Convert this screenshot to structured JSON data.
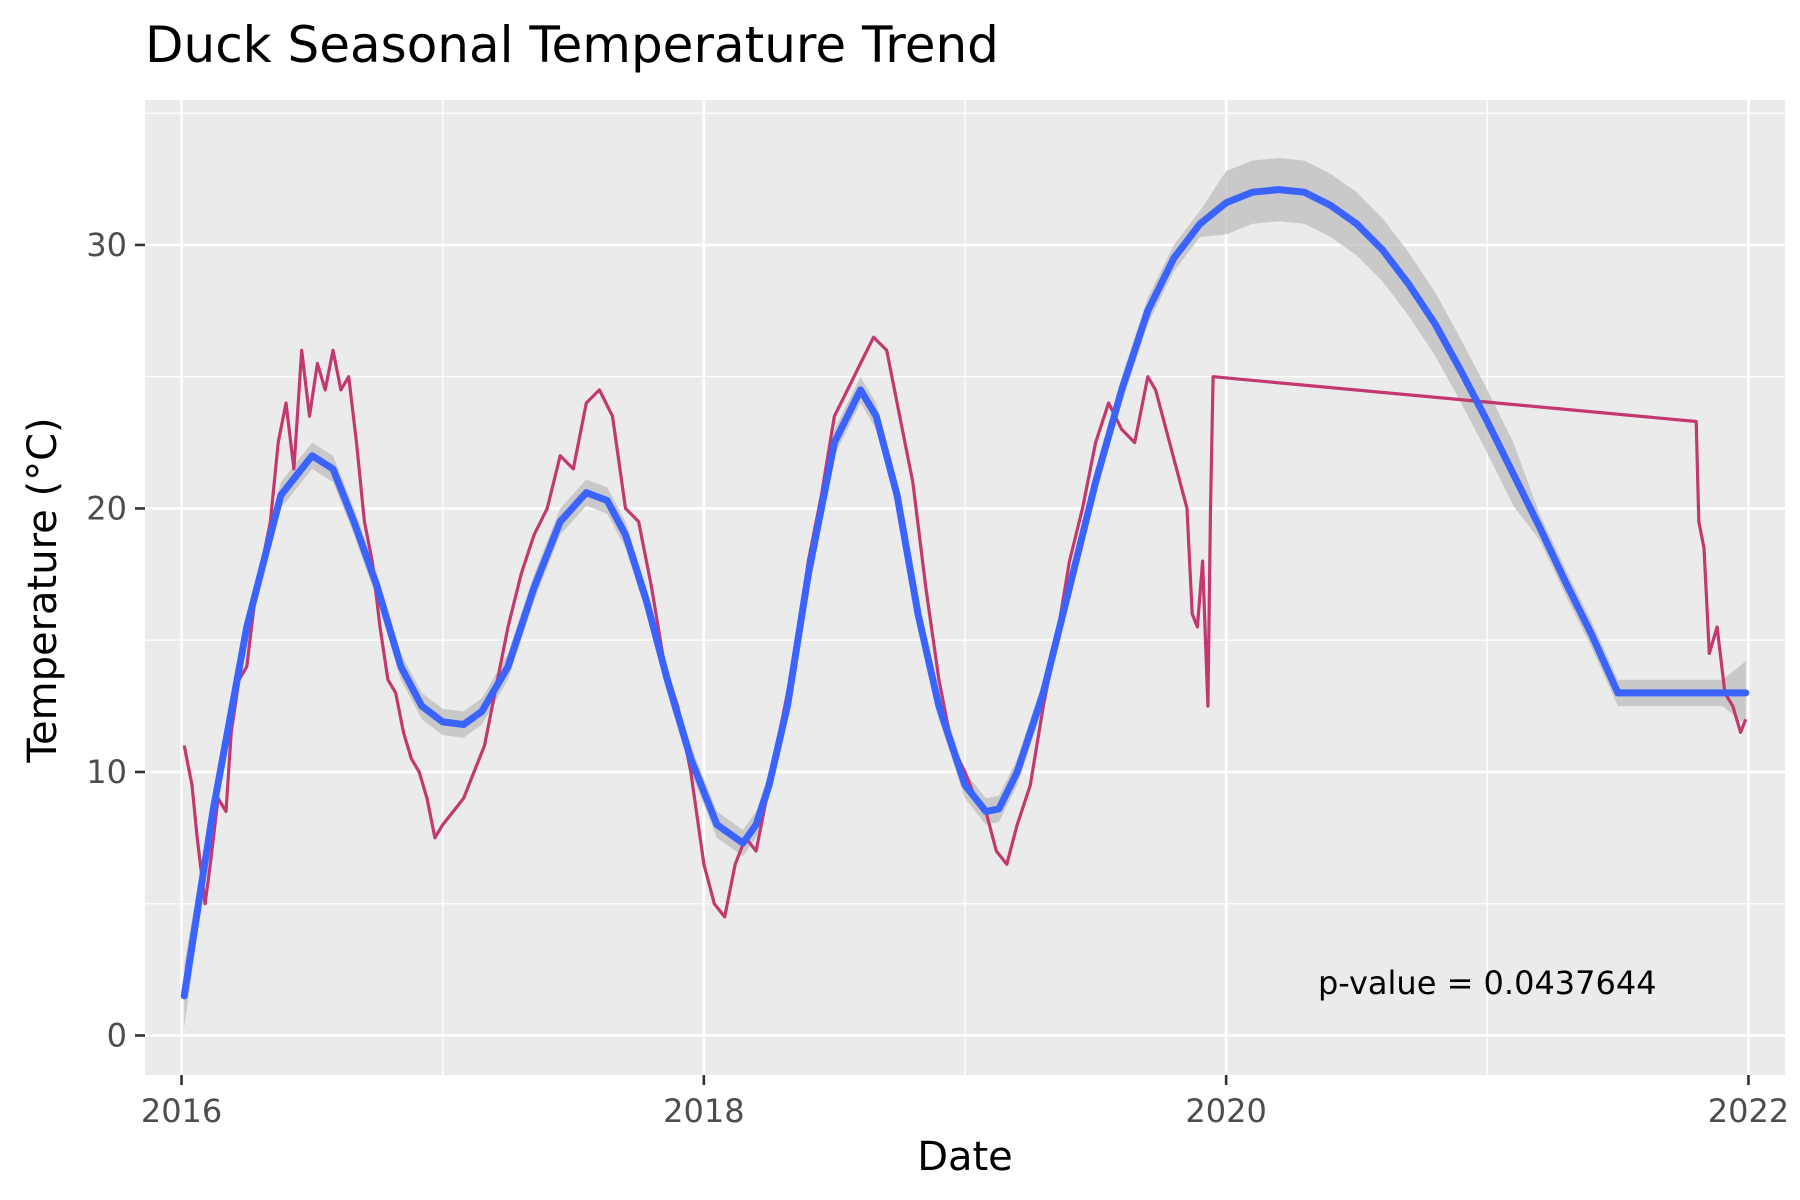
{
  "chart_data": {
    "type": "line",
    "title": "Duck Seasonal Temperature Trend",
    "xlabel": "Date",
    "ylabel": "Temperature (°C)",
    "xlim": [
      2015.86,
      2022.14
    ],
    "ylim": [
      -1.5,
      35.5
    ],
    "x_ticks": [
      2016,
      2018,
      2020,
      2022
    ],
    "x_tick_labels": [
      "2016",
      "2018",
      "2020",
      "2022"
    ],
    "y_ticks": [
      0,
      10,
      20,
      30
    ],
    "y_tick_labels": [
      "0",
      "10",
      "20",
      "30"
    ],
    "grid": true,
    "legend": "none",
    "annotation": {
      "text": "p-value = 0.0437644",
      "x": 2021.0,
      "y": 2.0
    },
    "colors": {
      "observed": "#c2386f",
      "smooth": "#3a63ff",
      "ribbon": "#bdbdbd",
      "panel": "#ebebeb",
      "grid": "#ffffff"
    },
    "series": [
      {
        "kind": "observed",
        "x": [
          2016.01,
          2016.04,
          2016.06,
          2016.09,
          2016.11,
          2016.14,
          2016.17,
          2016.19,
          2016.22,
          2016.25,
          2016.28,
          2016.31,
          2016.34,
          2016.37,
          2016.4,
          2016.43,
          2016.46,
          2016.49,
          2016.52,
          2016.55,
          2016.58,
          2016.61,
          2016.64,
          2016.67,
          2016.7,
          2016.73,
          2016.76,
          2016.79,
          2016.82,
          2016.85,
          2016.88,
          2016.91,
          2016.94,
          2016.97,
          2017.0,
          2017.04,
          2017.08,
          2017.12,
          2017.16,
          2017.2,
          2017.25,
          2017.3,
          2017.35,
          2017.4,
          2017.45,
          2017.5,
          2017.55,
          2017.6,
          2017.65,
          2017.7,
          2017.75,
          2017.8,
          2017.85,
          2017.9,
          2017.95,
          2018.0,
          2018.04,
          2018.08,
          2018.12,
          2018.16,
          2018.2,
          2018.25,
          2018.3,
          2018.35,
          2018.4,
          2018.45,
          2018.5,
          2018.55,
          2018.6,
          2018.65,
          2018.7,
          2018.75,
          2018.8,
          2018.85,
          2018.9,
          2018.95,
          2019.0,
          2019.04,
          2019.08,
          2019.12,
          2019.16,
          2019.2,
          2019.25,
          2019.3,
          2019.35,
          2019.4,
          2019.45,
          2019.5,
          2019.55,
          2019.6,
          2019.65,
          2019.7,
          2019.73,
          2019.85,
          2019.87,
          2019.89,
          2019.91,
          2019.93,
          2019.94,
          2019.95,
          2021.8,
          2021.81,
          2021.83,
          2021.85,
          2021.88,
          2021.91,
          2021.94,
          2021.97,
          2021.99
        ],
        "y": [
          11.0,
          9.5,
          7.5,
          5.0,
          6.5,
          9.0,
          8.5,
          11.5,
          13.5,
          14.0,
          16.5,
          18.0,
          19.5,
          22.5,
          24.0,
          21.5,
          26.0,
          23.5,
          25.5,
          24.5,
          26.0,
          24.5,
          25.0,
          22.5,
          19.5,
          18.0,
          15.5,
          13.5,
          13.0,
          11.5,
          10.5,
          10.0,
          9.0,
          7.5,
          8.0,
          8.5,
          9.0,
          10.0,
          11.0,
          13.0,
          15.5,
          17.5,
          19.0,
          20.0,
          22.0,
          21.5,
          24.0,
          24.5,
          23.5,
          20.0,
          19.5,
          17.0,
          14.0,
          12.5,
          10.0,
          6.5,
          5.0,
          4.5,
          6.5,
          7.5,
          7.0,
          9.5,
          12.0,
          14.5,
          18.0,
          20.5,
          23.5,
          24.5,
          25.5,
          26.5,
          26.0,
          23.5,
          21.0,
          17.0,
          13.5,
          11.0,
          10.0,
          9.0,
          8.5,
          7.0,
          6.5,
          8.0,
          9.5,
          12.5,
          15.0,
          18.0,
          20.0,
          22.5,
          24.0,
          23.0,
          22.5,
          25.0,
          24.5,
          20.0,
          16.0,
          15.5,
          18.0,
          12.5,
          20.0,
          25.0,
          23.3,
          19.5,
          18.5,
          14.5,
          15.5,
          13.0,
          12.5,
          11.5,
          12.0
        ]
      },
      {
        "kind": "smooth",
        "x": [
          2016.01,
          2016.12,
          2016.25,
          2016.38,
          2016.5,
          2016.58,
          2016.66,
          2016.75,
          2016.84,
          2016.92,
          2017.0,
          2017.08,
          2017.15,
          2017.25,
          2017.35,
          2017.45,
          2017.55,
          2017.63,
          2017.7,
          2017.78,
          2017.86,
          2017.95,
          2018.05,
          2018.15,
          2018.2,
          2018.25,
          2018.32,
          2018.4,
          2018.5,
          2018.6,
          2018.66,
          2018.74,
          2018.82,
          2018.9,
          2019.0,
          2019.08,
          2019.13,
          2019.2,
          2019.3,
          2019.4,
          2019.5,
          2019.6,
          2019.7,
          2019.8,
          2019.9,
          2020.0,
          2020.1,
          2020.2,
          2020.3,
          2020.4,
          2020.5,
          2020.6,
          2020.7,
          2020.8,
          2020.9,
          2021.0,
          2021.1,
          2021.2,
          2021.3,
          2021.4,
          2021.5,
          2021.6,
          2021.7,
          2021.8,
          2021.9,
          2021.99
        ],
        "y": [
          1.5,
          8.5,
          15.5,
          20.5,
          22.0,
          21.5,
          19.5,
          17.0,
          14.0,
          12.5,
          11.9,
          11.8,
          12.3,
          14.0,
          17.0,
          19.5,
          20.6,
          20.3,
          19.0,
          16.5,
          13.5,
          10.5,
          8.0,
          7.3,
          8.0,
          9.5,
          12.5,
          17.5,
          22.5,
          24.5,
          23.5,
          20.5,
          16.0,
          12.5,
          9.5,
          8.5,
          8.6,
          10.0,
          13.0,
          17.0,
          21.0,
          24.5,
          27.5,
          29.5,
          30.8,
          31.6,
          32.0,
          32.1,
          32.0,
          31.5,
          30.8,
          29.8,
          28.5,
          27.0,
          25.2,
          23.3,
          21.3,
          19.3,
          17.2,
          15.2,
          13.0,
          13.0,
          13.0,
          13.0,
          13.0,
          13.0
        ]
      }
    ]
  }
}
